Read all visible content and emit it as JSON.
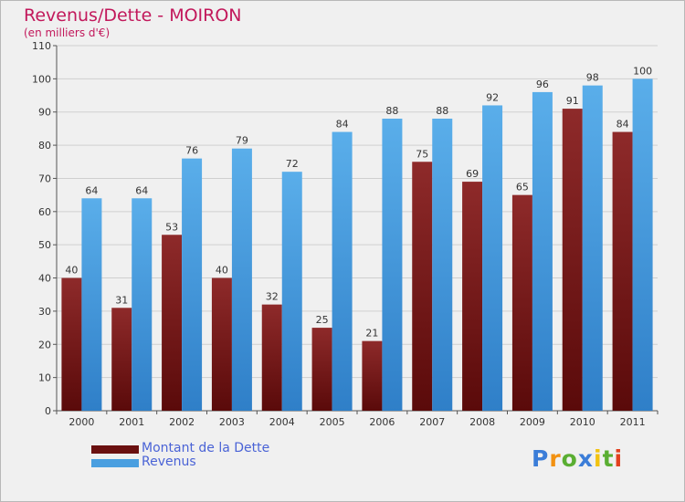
{
  "chart_data": {
    "type": "bar",
    "title": "Revenus/Dette - MOIRON",
    "subtitle": "(en milliers d'€)",
    "categories": [
      "2000",
      "2001",
      "2002",
      "2003",
      "2004",
      "2005",
      "2006",
      "2007",
      "2008",
      "2009",
      "2010",
      "2011"
    ],
    "series": [
      {
        "name": "Montant de la Dette",
        "color": "#7b1c1c",
        "values": [
          40,
          31,
          53,
          40,
          32,
          25,
          21,
          75,
          69,
          65,
          91,
          84
        ]
      },
      {
        "name": "Revenus",
        "color": "#4a9fe0",
        "values": [
          64,
          64,
          76,
          79,
          72,
          84,
          88,
          88,
          92,
          96,
          98,
          100
        ]
      }
    ],
    "ylim": [
      0,
      110
    ],
    "yticks": [
      0,
      10,
      20,
      30,
      40,
      50,
      60,
      70,
      80,
      90,
      100,
      110
    ],
    "grid": true,
    "data_labels": true,
    "legend_position": "bottom-left"
  },
  "logo": {
    "letters": [
      "P",
      "r",
      "o",
      "x",
      "i",
      "t",
      "i"
    ],
    "colors": [
      "#3b7dd8",
      "#f29111",
      "#5aae32",
      "#3b7dd8",
      "#f2c311",
      "#5aae32",
      "#e2401f"
    ]
  }
}
